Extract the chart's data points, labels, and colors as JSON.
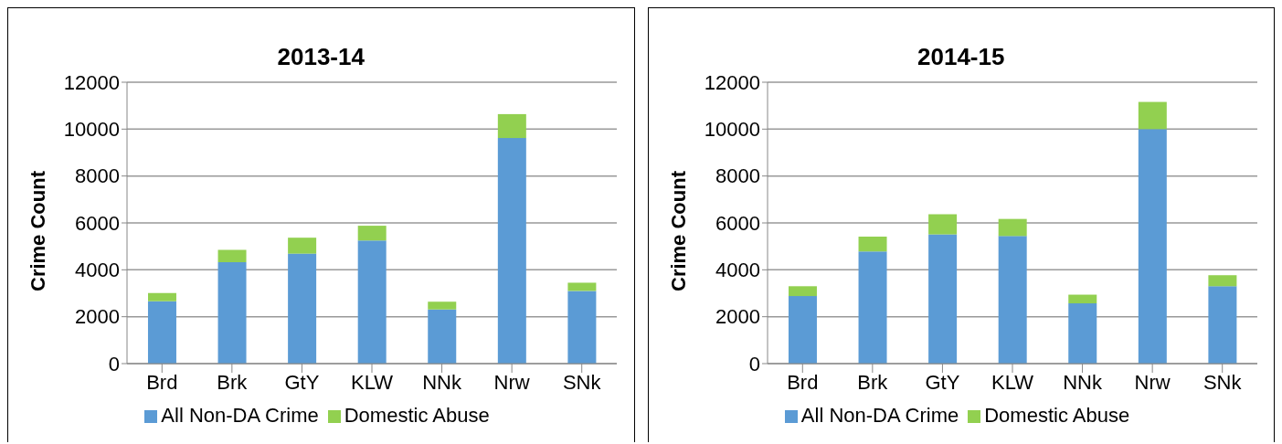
{
  "chart_data": [
    {
      "type": "bar",
      "title": "2013-14",
      "ylabel": "Crime Count",
      "categories": [
        "Brd",
        "Brk",
        "GtY",
        "KLW",
        "NNk",
        "Nrw",
        "SNk"
      ],
      "stacked": true,
      "series": [
        {
          "name": "All Non-DA Crime",
          "color": "#5b9bd5",
          "values": [
            2660,
            4320,
            4690,
            5250,
            2310,
            9620,
            3100
          ]
        },
        {
          "name": "Domestic Abuse",
          "color": "#92d050",
          "values": [
            350,
            530,
            680,
            630,
            330,
            1020,
            350
          ]
        }
      ],
      "ylim": [
        0,
        12000
      ],
      "yticks": [
        0,
        2000,
        4000,
        6000,
        8000,
        10000,
        12000
      ],
      "grid": "y",
      "legend": "bottom"
    },
    {
      "type": "bar",
      "title": "2014-15",
      "ylabel": "Crime Count",
      "categories": [
        "Brd",
        "Brk",
        "GtY",
        "KLW",
        "NNk",
        "Nrw",
        "SNk"
      ],
      "stacked": true,
      "series": [
        {
          "name": "All Non-DA Crime",
          "color": "#5b9bd5",
          "values": [
            2880,
            4780,
            5510,
            5440,
            2570,
            10000,
            3300
          ]
        },
        {
          "name": "Domestic Abuse",
          "color": "#92d050",
          "values": [
            420,
            640,
            860,
            730,
            370,
            1160,
            470
          ]
        }
      ],
      "ylim": [
        0,
        12000
      ],
      "yticks": [
        0,
        2000,
        4000,
        6000,
        8000,
        10000,
        12000
      ],
      "grid": "y",
      "legend": "bottom"
    }
  ]
}
